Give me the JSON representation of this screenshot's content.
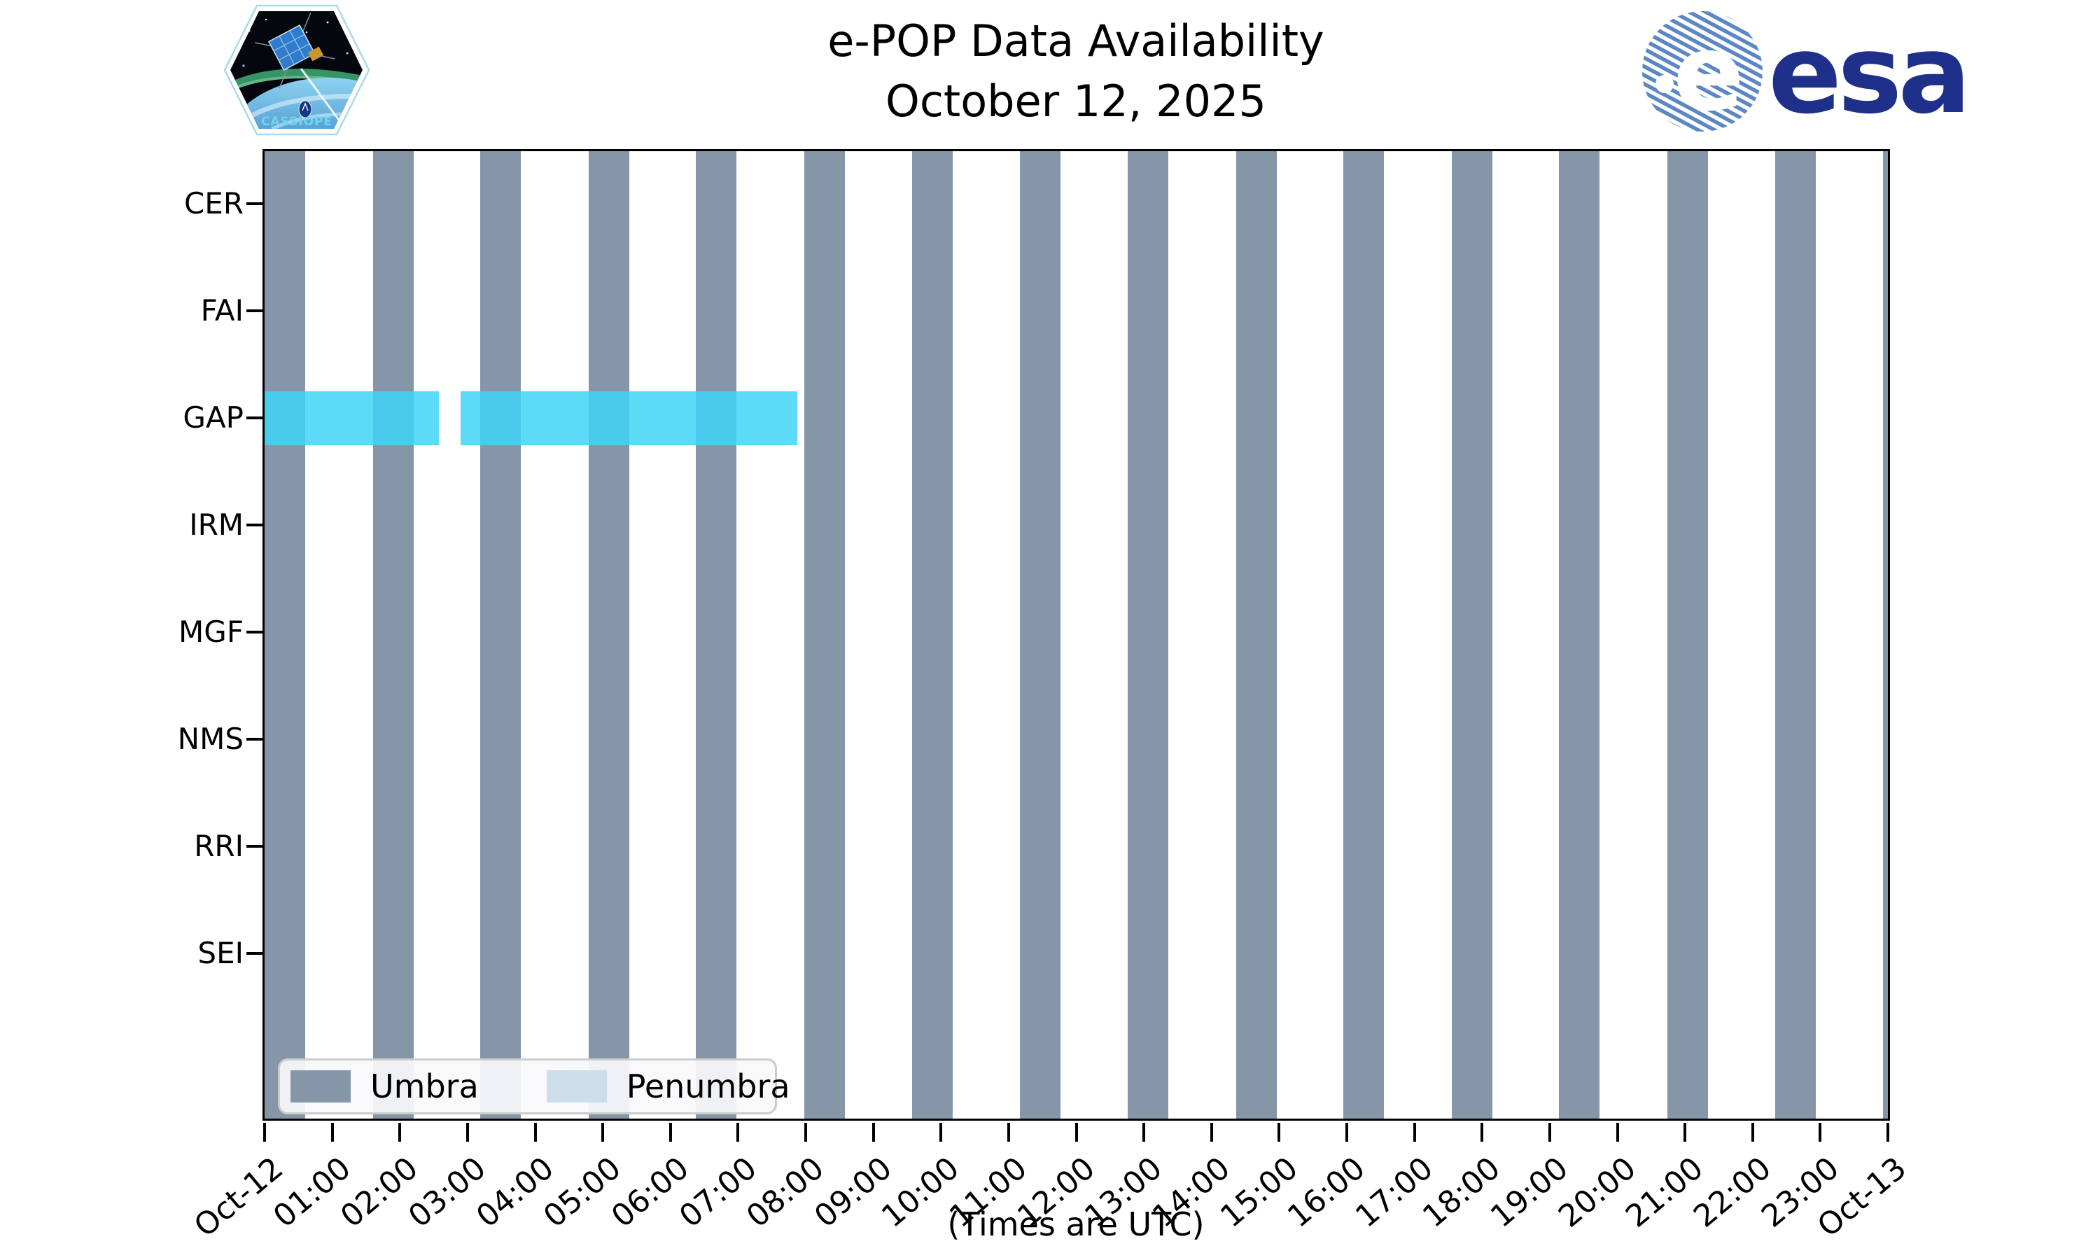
{
  "header": {
    "title_line1": "e-POP Data Availability",
    "title_line2": "October 12, 2025",
    "cassiope_badge_label": "CASSIOPE",
    "esa_logo_text": "esa"
  },
  "chart_data": {
    "type": "timeline-availability",
    "title": "e-POP Data Availability",
    "subtitle": "October 12, 2025",
    "xlabel": "(Times are UTC)",
    "x_range_hours": [
      0,
      24
    ],
    "x_tick_labels": [
      "Oct-12",
      "01:00",
      "02:00",
      "03:00",
      "04:00",
      "05:00",
      "06:00",
      "07:00",
      "08:00",
      "09:00",
      "10:00",
      "11:00",
      "12:00",
      "13:00",
      "14:00",
      "15:00",
      "16:00",
      "17:00",
      "18:00",
      "19:00",
      "20:00",
      "21:00",
      "22:00",
      "23:00",
      "Oct-13"
    ],
    "instruments": [
      "CER",
      "FAI",
      "GAP",
      "IRM",
      "MGF",
      "NMS",
      "RRI",
      "SEI"
    ],
    "umbra_intervals_hours": [
      [
        0.0,
        0.6
      ],
      [
        1.6,
        2.2
      ],
      [
        3.19,
        3.79
      ],
      [
        4.79,
        5.39
      ],
      [
        6.38,
        6.98
      ],
      [
        7.98,
        8.58
      ],
      [
        9.57,
        10.17
      ],
      [
        11.17,
        11.77
      ],
      [
        12.76,
        13.36
      ],
      [
        14.36,
        14.96
      ],
      [
        15.95,
        16.55
      ],
      [
        17.55,
        18.15
      ],
      [
        19.14,
        19.74
      ],
      [
        20.74,
        21.34
      ],
      [
        22.33,
        22.93
      ],
      [
        23.93,
        24.0
      ]
    ],
    "availability": [
      {
        "instrument": "GAP",
        "intervals_hours": [
          [
            0.0,
            2.58
          ],
          [
            2.9,
            7.88
          ]
        ]
      }
    ],
    "legend": [
      {
        "label": "Umbra",
        "color": "#8596a9"
      },
      {
        "label": "Penumbra",
        "color": "#cdddec"
      }
    ],
    "colors": {
      "umbra": "#8596a9",
      "penumbra": "#cdddec",
      "availability": "rgba(64,213,247,0.85)",
      "axis": "#000000",
      "esa_navy": "#1e3089",
      "esa_stripe_blue": "#5b87c5"
    },
    "grid": false,
    "legend_position": "lower left"
  }
}
